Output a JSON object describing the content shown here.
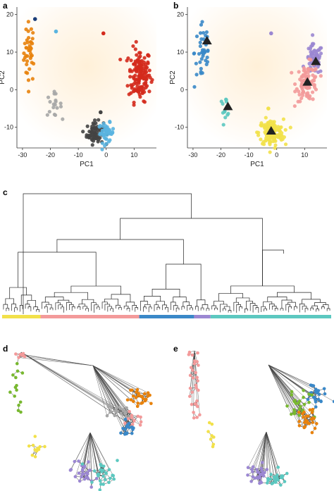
{
  "figure": {
    "panel_labels": [
      "a",
      "b",
      "c",
      "d",
      "e"
    ]
  },
  "colors": {
    "orange": "#e8820c",
    "red": "#d42a1c",
    "darkgray": "#444444",
    "lightblue": "#5ab4e0",
    "gray": "#a6a6a6",
    "navy": "#1a3c78",
    "blue": "#3a88c8",
    "purple": "#9b87d2",
    "pink": "#f39a9a",
    "yellow": "#f2e14a",
    "teal": "#5cc8c0",
    "green": "#78b830",
    "black": "#111111"
  },
  "chart_data": [
    {
      "panel": "a",
      "type": "scatter",
      "xlabel": "PC1",
      "ylabel": "PC2",
      "xlim": [
        -32,
        18
      ],
      "ylim": [
        -15.5,
        22
      ],
      "xticks": [
        -30,
        -20,
        -10,
        0,
        10
      ],
      "yticks": [
        -10,
        0,
        10,
        20
      ],
      "background": "radial glow",
      "clusters": [
        {
          "color": "orange",
          "cx": -27.5,
          "cy": 10,
          "sx": 1.0,
          "sy": 4.0,
          "n": 40
        },
        {
          "color": "red",
          "cx": 12,
          "cy": 4,
          "sx": 2.0,
          "sy": 3.5,
          "n": 150
        },
        {
          "color": "darkgray",
          "cx": -4,
          "cy": -11.5,
          "sx": 1.5,
          "sy": 1.5,
          "n": 70
        },
        {
          "color": "lightblue",
          "cx": 0,
          "cy": -11.5,
          "sx": 1.4,
          "sy": 1.3,
          "n": 45
        },
        {
          "color": "gray",
          "cx": -19,
          "cy": -4,
          "sx": 1.5,
          "sy": 1.5,
          "n": 18
        }
      ],
      "single_points": [
        {
          "color": "navy",
          "x": -25.5,
          "y": 18.8
        },
        {
          "color": "lightblue",
          "x": -18,
          "y": 15.5
        },
        {
          "color": "red",
          "x": -1,
          "y": 15
        },
        {
          "color": "darkgray",
          "x": -2,
          "y": -6
        }
      ]
    },
    {
      "panel": "b",
      "type": "scatter",
      "xlabel": "PC1",
      "ylabel": "PC2",
      "xlim": [
        -32,
        18
      ],
      "ylim": [
        -15.5,
        22
      ],
      "xticks": [
        -30,
        -20,
        -10,
        0,
        10
      ],
      "yticks": [
        -10,
        0,
        10,
        20
      ],
      "background": "radial glow",
      "clusters": [
        {
          "color": "blue",
          "cx": -26.5,
          "cy": 10,
          "sx": 1.5,
          "sy": 5.0,
          "n": 40
        },
        {
          "color": "purple",
          "cx": 13.5,
          "cy": 8,
          "sx": 1.5,
          "sy": 2.0,
          "n": 60
        },
        {
          "color": "pink",
          "cx": 11,
          "cy": 2,
          "sx": 2.0,
          "sy": 2.5,
          "n": 90
        },
        {
          "color": "teal",
          "cx": -18.5,
          "cy": -4.5,
          "sx": 1.0,
          "sy": 1.2,
          "n": 14
        },
        {
          "color": "yellow",
          "cx": -2,
          "cy": -11.5,
          "sx": 2.2,
          "sy": 1.8,
          "n": 140
        }
      ],
      "single_points": [
        {
          "color": "purple",
          "x": -2,
          "y": 15
        },
        {
          "color": "yellow",
          "x": -3,
          "y": -5
        }
      ],
      "centroids": [
        {
          "x": -25,
          "y": 13
        },
        {
          "x": -17.5,
          "y": -4.5
        },
        {
          "x": -2,
          "y": -11
        },
        {
          "x": 11,
          "y": 2
        },
        {
          "x": 14,
          "y": 7.5
        }
      ]
    },
    {
      "panel": "c",
      "type": "dendrogram",
      "leaf_count": 120,
      "groups": [
        {
          "color": "yellow",
          "leaves": 14
        },
        {
          "color": "pink",
          "leaves": 36
        },
        {
          "color": "blue",
          "leaves": 20
        },
        {
          "color": "purple",
          "leaves": 6
        },
        {
          "color": "teal",
          "leaves": 44
        }
      ]
    },
    {
      "panel": "d",
      "type": "network",
      "groups": [
        {
          "color": "pink",
          "role": "top-left",
          "n": 10
        },
        {
          "color": "green",
          "role": "left",
          "n": 14
        },
        {
          "color": "yellow",
          "role": "bottom-small",
          "n": 12
        },
        {
          "color": "gray",
          "role": "hub-cluster",
          "n": 22
        },
        {
          "color": "orange",
          "role": "hub-cluster",
          "n": 26
        },
        {
          "color": "pink",
          "role": "hub-cluster",
          "n": 14
        },
        {
          "color": "blue",
          "role": "hub-cluster",
          "n": 16
        },
        {
          "color": "purple",
          "role": "bottom",
          "n": 28
        },
        {
          "color": "teal",
          "role": "bottom",
          "n": 28
        }
      ]
    },
    {
      "panel": "e",
      "type": "network",
      "groups": [
        {
          "color": "pink",
          "role": "left-chain",
          "n": 30
        },
        {
          "color": "yellow",
          "role": "left-bottom",
          "n": 8
        },
        {
          "color": "blue",
          "role": "hub-cluster",
          "n": 26
        },
        {
          "color": "green",
          "role": "hub-cluster",
          "n": 26
        },
        {
          "color": "orange",
          "role": "hub-cluster",
          "n": 26
        },
        {
          "color": "purple",
          "role": "bottom",
          "n": 30
        },
        {
          "color": "teal",
          "role": "bottom",
          "n": 24
        }
      ]
    }
  ]
}
